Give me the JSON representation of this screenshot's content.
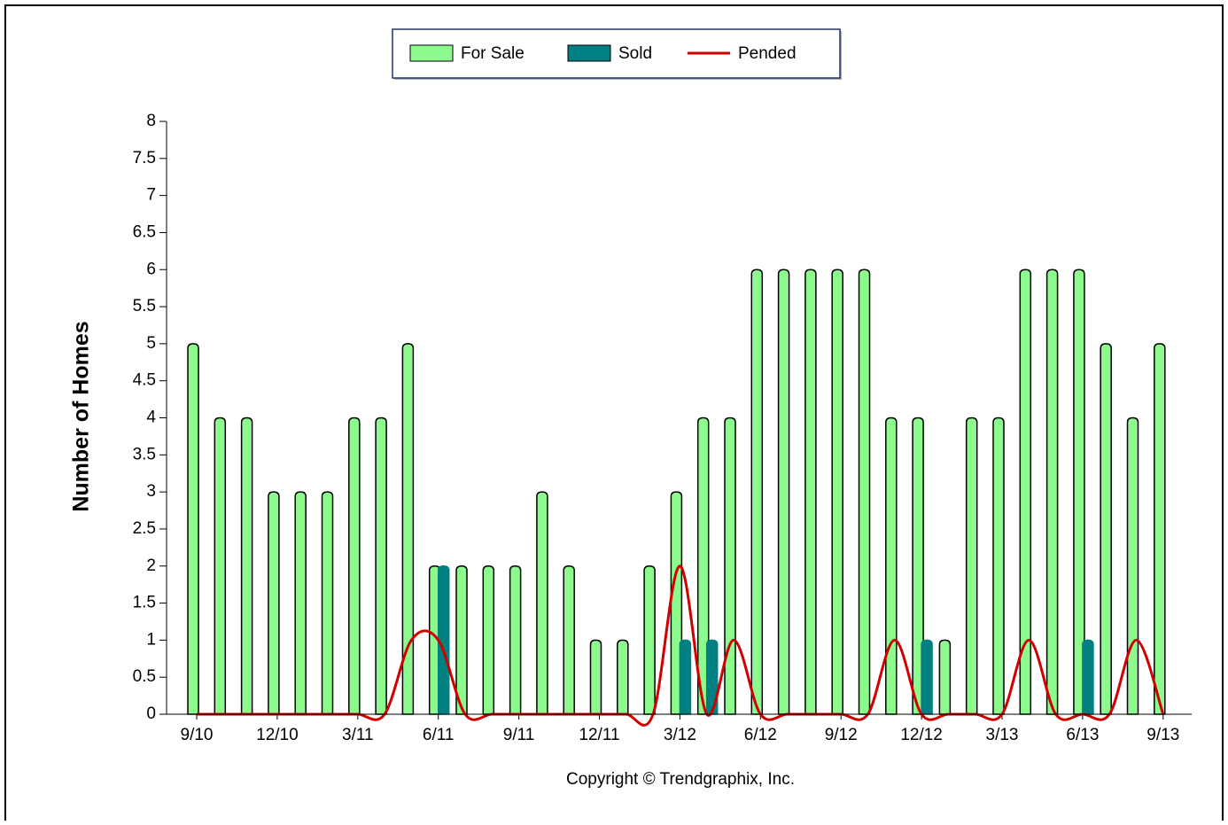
{
  "chart_data": {
    "type": "bar",
    "y_label": "Number of Homes",
    "footer": "Copyright © Trendgraphix, Inc.",
    "categories": [
      "9/10",
      null,
      null,
      "12/10",
      null,
      null,
      "3/11",
      null,
      null,
      "6/11",
      null,
      null,
      "9/11",
      null,
      null,
      "12/11",
      null,
      null,
      "3/12",
      null,
      null,
      "6/12",
      null,
      null,
      "9/12",
      null,
      null,
      "12/12",
      null,
      null,
      "3/13",
      null,
      null,
      "6/13",
      null,
      null,
      "9/13"
    ],
    "series": [
      {
        "name": "For Sale",
        "type": "bar",
        "color": "#8dfa8d",
        "values": [
          5,
          4,
          4,
          3,
          3,
          3,
          4,
          4,
          5,
          2,
          2,
          2,
          2,
          3,
          2,
          1,
          1,
          2,
          3,
          4,
          4,
          6,
          6,
          6,
          6,
          6,
          4,
          4,
          1,
          4,
          4,
          6,
          6,
          6,
          5,
          4,
          5
        ]
      },
      {
        "name": "Sold",
        "type": "bar",
        "color": "#008080",
        "values": [
          0,
          0,
          0,
          0,
          0,
          0,
          0,
          0,
          0,
          2,
          0,
          0,
          0,
          0,
          0,
          0,
          0,
          0,
          1,
          1,
          0,
          0,
          0,
          0,
          0,
          0,
          0,
          1,
          0,
          0,
          0,
          0,
          0,
          1,
          0,
          0,
          0
        ]
      },
      {
        "name": "Pended",
        "type": "line",
        "color": "#d00000",
        "values": [
          0,
          0,
          0,
          0,
          0,
          0,
          0,
          0,
          1,
          1,
          0,
          0,
          0,
          0,
          0,
          0,
          0,
          0,
          2,
          0,
          1,
          0,
          0,
          0,
          0,
          0,
          1,
          0,
          0,
          0,
          0,
          1,
          0,
          0,
          0,
          1,
          0
        ]
      }
    ],
    "ylim": [
      0,
      8
    ],
    "yticks": [
      0,
      0.5,
      1,
      1.5,
      2,
      2.5,
      3,
      3.5,
      4,
      4.5,
      5,
      5.5,
      6,
      6.5,
      7,
      7.5,
      8
    ]
  }
}
